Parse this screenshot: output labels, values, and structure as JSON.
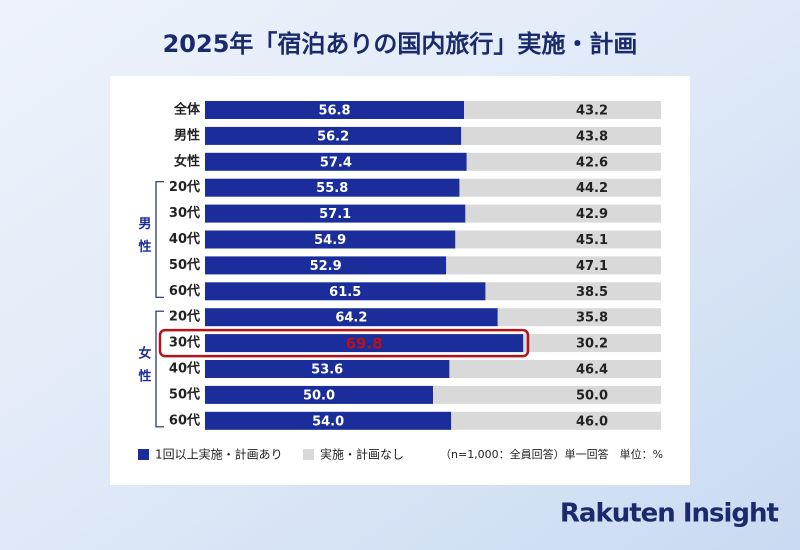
{
  "chart_data": {
    "type": "stacked-bar-horizontal",
    "title": "2025年「宿泊ありの国内旅行」実施・計画",
    "category_groups": [
      {
        "categories": [
          "全体",
          "男性",
          "女性"
        ]
      },
      {
        "name": "男性",
        "categories": [
          "20代",
          "30代",
          "40代",
          "50代",
          "60代"
        ]
      },
      {
        "name": "女性",
        "categories": [
          "20代",
          "30代",
          "40代",
          "50代",
          "60代"
        ]
      }
    ],
    "series": [
      {
        "name": "1回以上実施・計画あり",
        "color": "#1a2d9b",
        "values": [
          56.8,
          56.2,
          57.4,
          55.8,
          57.1,
          54.9,
          52.9,
          61.5,
          64.2,
          69.8,
          53.6,
          50.0,
          54.0
        ],
        "value_labels": [
          "56.8",
          "56.2",
          "57.4",
          "55.8",
          "57.1",
          "54.9",
          "52.9",
          "61.5",
          "64.2",
          "69.8",
          "53.6",
          "50.0",
          "54.0"
        ]
      },
      {
        "name": "実施・計画なし",
        "color": "#d9d9d9",
        "values": [
          43.2,
          43.8,
          42.6,
          44.2,
          42.9,
          45.1,
          47.1,
          38.5,
          35.8,
          30.2,
          46.4,
          50.0,
          46.0
        ],
        "value_labels": [
          "43.2",
          "43.8",
          "42.6",
          "44.2",
          "42.9",
          "45.1",
          "47.1",
          "38.5",
          "35.8",
          "30.2",
          "46.4",
          "50.0",
          "46.0"
        ]
      }
    ],
    "xlim": [
      0,
      100
    ],
    "highlight_index": 9,
    "highlight_color": "#b5121b",
    "note": "（n=1,000：全員回答）単一回答　単位：%"
  },
  "brand": "Rakuten Insight"
}
